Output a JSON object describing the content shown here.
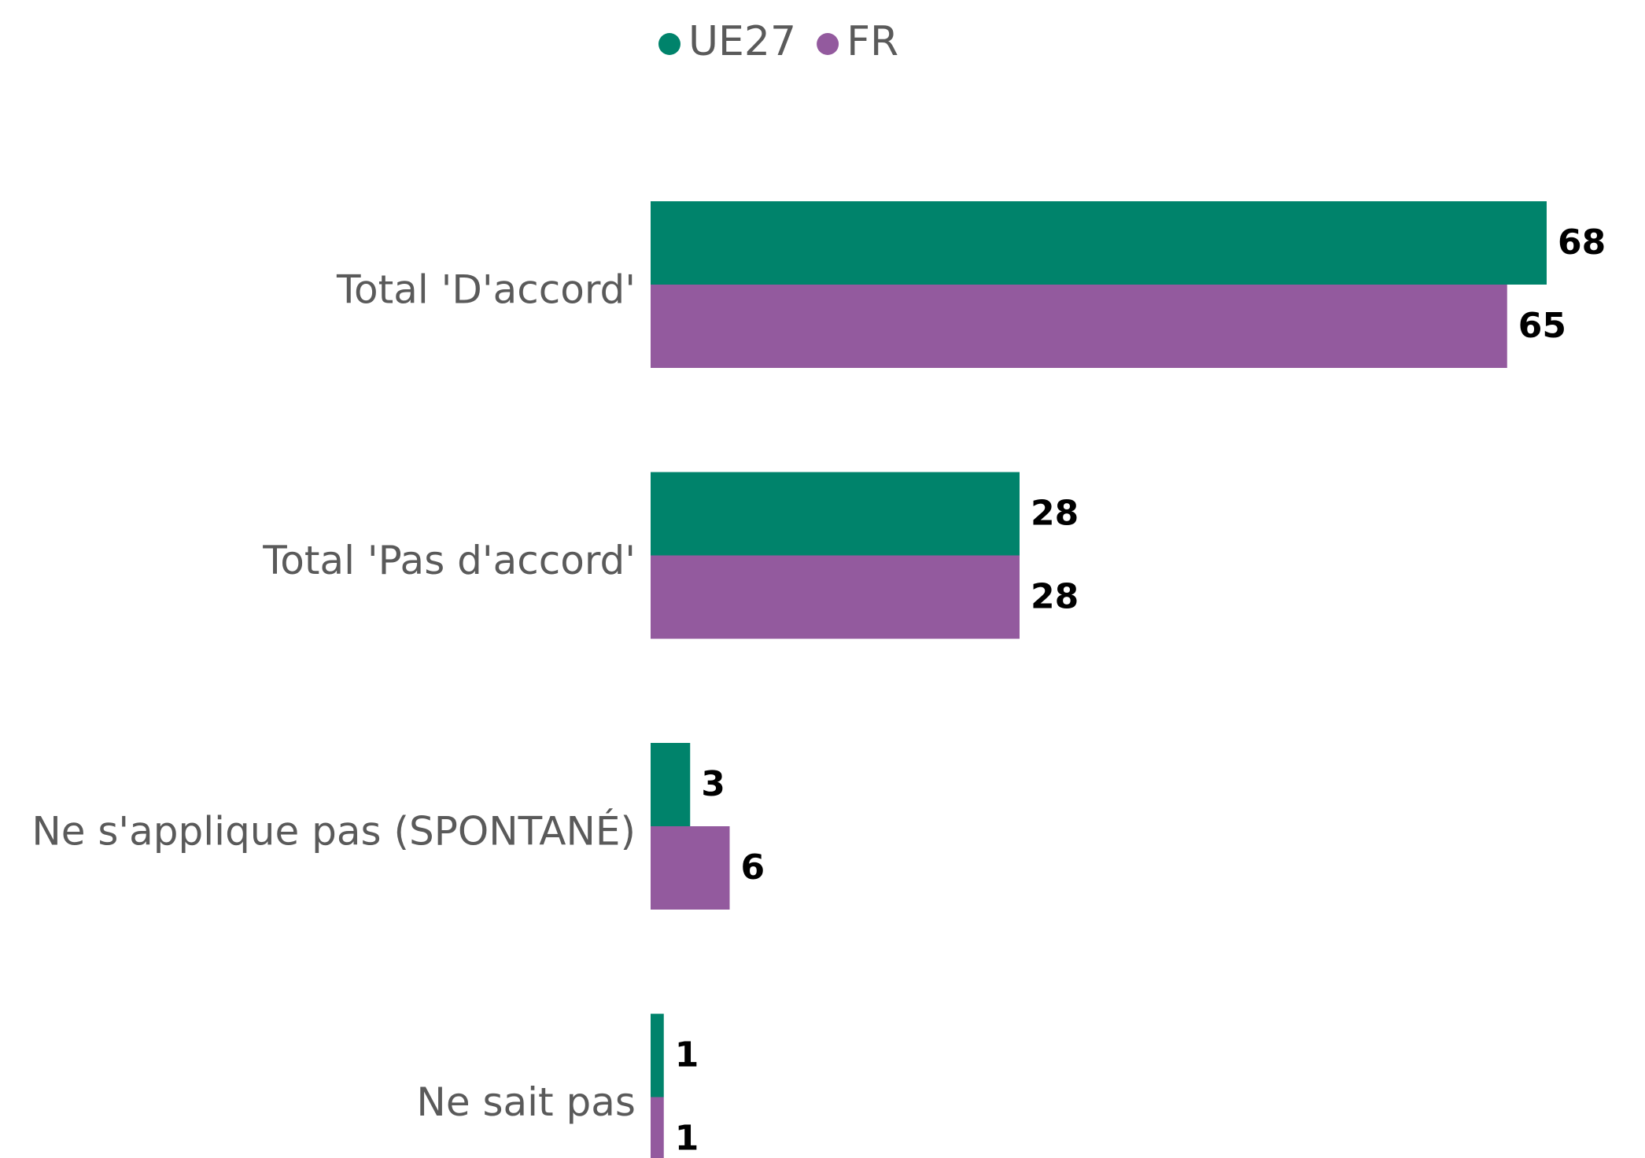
{
  "chart_data": {
    "type": "hbar",
    "categories": [
      "Total 'D'accord'",
      "Total 'Pas d'accord'",
      "Ne s'applique pas (SPONTANÉ)",
      "Ne sait pas"
    ],
    "series": [
      {
        "name": "UE27",
        "color": "#00836b",
        "values": [
          68,
          28,
          3,
          1
        ]
      },
      {
        "name": "FR",
        "color": "#935a9e",
        "values": [
          65,
          28,
          6,
          1
        ]
      }
    ]
  }
}
